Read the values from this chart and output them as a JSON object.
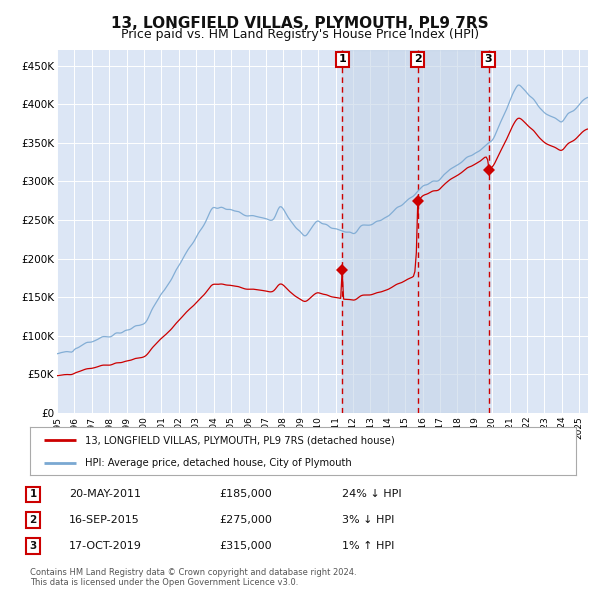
{
  "title": "13, LONGFIELD VILLAS, PLYMOUTH, PL9 7RS",
  "subtitle": "Price paid vs. HM Land Registry's House Price Index (HPI)",
  "title_fontsize": 11,
  "subtitle_fontsize": 9,
  "background_color": "#ffffff",
  "plot_bg_color": "#dce6f5",
  "grid_color": "#ffffff",
  "ylim": [
    0,
    470000
  ],
  "yticks": [
    0,
    50000,
    100000,
    150000,
    200000,
    250000,
    300000,
    350000,
    400000,
    450000
  ],
  "ytick_labels": [
    "£0",
    "£50K",
    "£100K",
    "£150K",
    "£200K",
    "£250K",
    "£300K",
    "£350K",
    "£400K",
    "£450K"
  ],
  "sale_dates": [
    2011.38,
    2015.71,
    2019.79
  ],
  "sale_prices": [
    185000,
    275000,
    315000
  ],
  "sale_labels": [
    "1",
    "2",
    "3"
  ],
  "legend_red_label": "13, LONGFIELD VILLAS, PLYMOUTH, PL9 7RS (detached house)",
  "legend_blue_label": "HPI: Average price, detached house, City of Plymouth",
  "table_rows": [
    [
      "1",
      "20-MAY-2011",
      "£185,000",
      "24% ↓ HPI"
    ],
    [
      "2",
      "16-SEP-2015",
      "£275,000",
      "3% ↓ HPI"
    ],
    [
      "3",
      "17-OCT-2019",
      "£315,000",
      "1% ↑ HPI"
    ]
  ],
  "footnote": "Contains HM Land Registry data © Crown copyright and database right 2024.\nThis data is licensed under the Open Government Licence v3.0.",
  "red_color": "#cc0000",
  "blue_color": "#7aa8d2",
  "shade_color": "#c5d5e8",
  "xlim_start": 1995,
  "xlim_end": 2025.5
}
